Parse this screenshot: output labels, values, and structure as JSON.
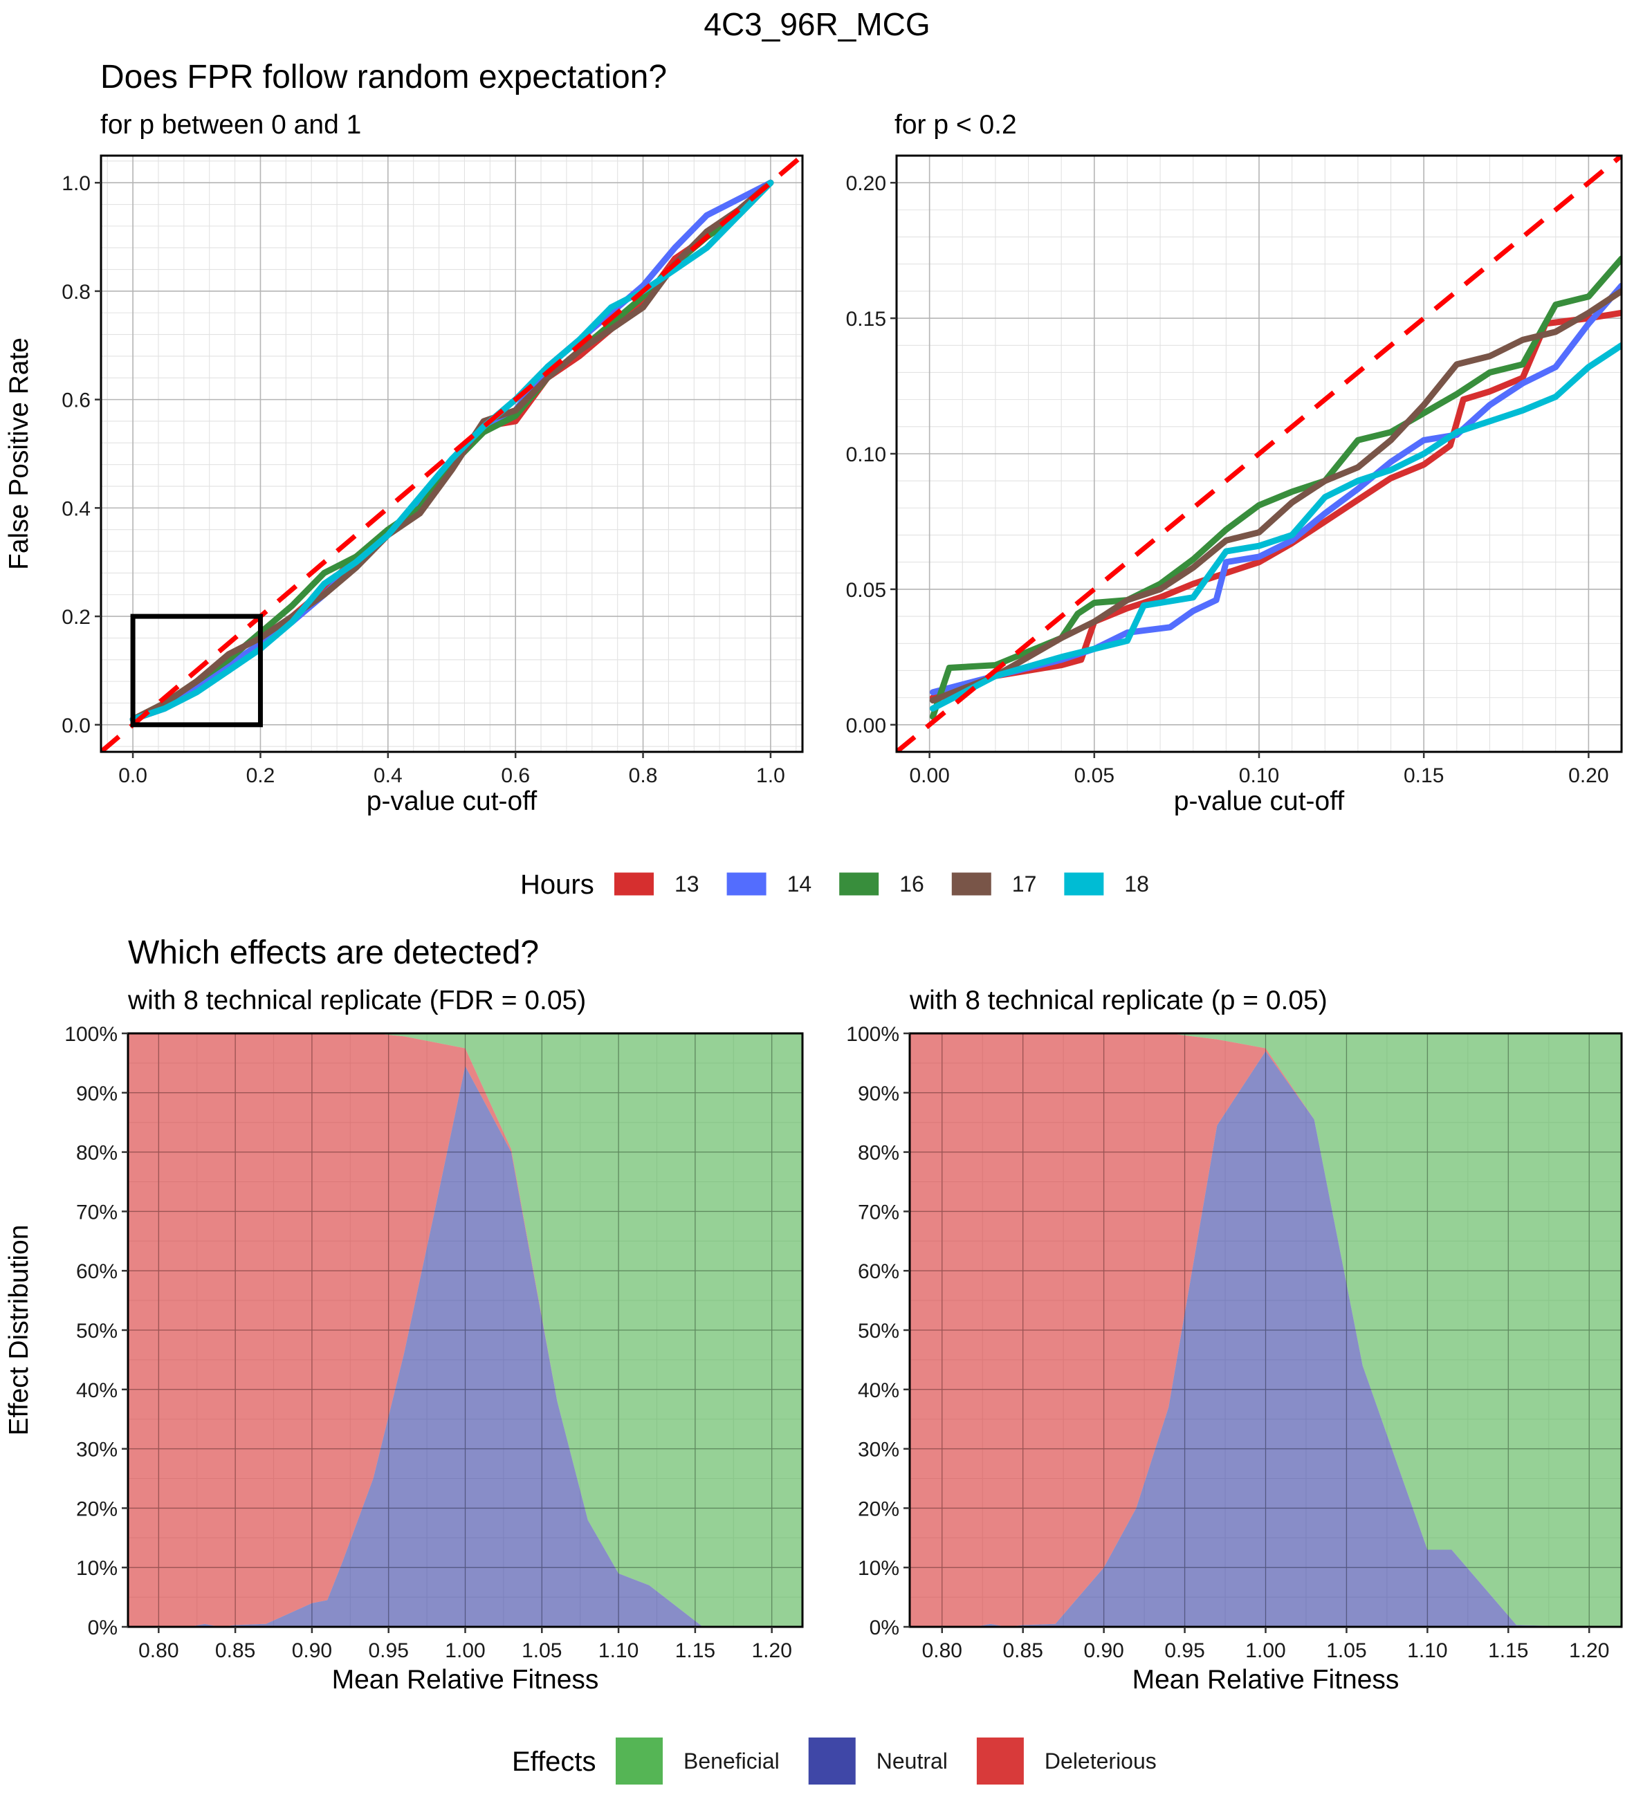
{
  "figure_title": "4C3_96R_MCG",
  "legends": {
    "hours": {
      "title": "Hours",
      "items": [
        {
          "label": "13",
          "color": "#D62F2F"
        },
        {
          "label": "14",
          "color": "#536DFE"
        },
        {
          "label": "16",
          "color": "#388E3C"
        },
        {
          "label": "17",
          "color": "#795548"
        },
        {
          "label": "18",
          "color": "#00BCD4"
        }
      ]
    },
    "effects": {
      "title": "Effects",
      "items": [
        {
          "label": "Beneficial",
          "color": "#55B555"
        },
        {
          "label": "Neutral",
          "color": "#3F47A7"
        },
        {
          "label": "Deleterious",
          "color": "#D83A3A"
        }
      ]
    }
  },
  "chart_data": [
    {
      "type": "line",
      "title": "Does FPR follow random expectation?",
      "subtitle": "for p between 0 and 1",
      "xlabel": "p-value cut-off",
      "ylabel": "False Positive Rate",
      "xlim": [
        -0.05,
        1.05
      ],
      "ylim": [
        -0.05,
        1.05
      ],
      "xticks": [
        "0.0",
        "0.2",
        "0.4",
        "0.6",
        "0.8",
        "1.0"
      ],
      "yticks": [
        "0.0",
        "0.2",
        "0.4",
        "0.6",
        "0.8",
        "1.0"
      ],
      "grid": true,
      "reference_line": {
        "label": "y = x",
        "color": "#FF0000",
        "style": "dashed"
      },
      "highlight_box": {
        "x": [
          0,
          0.2
        ],
        "y": [
          0,
          0.2
        ]
      },
      "series": [
        {
          "name": "13",
          "color": "#D62F2F",
          "x": [
            0,
            0.05,
            0.1,
            0.15,
            0.2,
            0.25,
            0.3,
            0.35,
            0.4,
            0.45,
            0.5,
            0.55,
            0.6,
            0.65,
            0.7,
            0.75,
            0.8,
            0.85,
            0.9,
            0.95,
            1.0
          ],
          "y": [
            0.01,
            0.03,
            0.07,
            0.1,
            0.15,
            0.2,
            0.25,
            0.31,
            0.35,
            0.4,
            0.48,
            0.55,
            0.56,
            0.64,
            0.68,
            0.73,
            0.78,
            0.86,
            0.9,
            0.95,
            1.0
          ]
        },
        {
          "name": "14",
          "color": "#536DFE",
          "x": [
            0,
            0.05,
            0.1,
            0.15,
            0.2,
            0.25,
            0.3,
            0.35,
            0.4,
            0.45,
            0.5,
            0.55,
            0.6,
            0.65,
            0.7,
            0.75,
            0.8,
            0.85,
            0.9,
            0.95,
            1.0
          ],
          "y": [
            0.01,
            0.03,
            0.07,
            0.11,
            0.15,
            0.19,
            0.24,
            0.3,
            0.35,
            0.41,
            0.48,
            0.55,
            0.58,
            0.66,
            0.71,
            0.76,
            0.81,
            0.88,
            0.94,
            0.97,
            1.0
          ]
        },
        {
          "name": "16",
          "color": "#388E3C",
          "x": [
            0,
            0.05,
            0.1,
            0.15,
            0.2,
            0.25,
            0.3,
            0.35,
            0.4,
            0.45,
            0.5,
            0.55,
            0.6,
            0.65,
            0.7,
            0.75,
            0.8,
            0.85,
            0.9,
            0.95,
            1.0
          ],
          "y": [
            0.01,
            0.04,
            0.08,
            0.12,
            0.17,
            0.22,
            0.28,
            0.31,
            0.36,
            0.4,
            0.48,
            0.54,
            0.57,
            0.64,
            0.69,
            0.74,
            0.79,
            0.85,
            0.9,
            0.94,
            1.0
          ]
        },
        {
          "name": "17",
          "color": "#795548",
          "x": [
            0,
            0.05,
            0.1,
            0.15,
            0.2,
            0.25,
            0.3,
            0.35,
            0.4,
            0.45,
            0.5,
            0.55,
            0.6,
            0.65,
            0.7,
            0.75,
            0.8,
            0.85,
            0.9,
            0.95,
            1.0
          ],
          "y": [
            0.01,
            0.04,
            0.08,
            0.13,
            0.16,
            0.2,
            0.24,
            0.29,
            0.35,
            0.39,
            0.47,
            0.56,
            0.58,
            0.64,
            0.69,
            0.73,
            0.77,
            0.85,
            0.91,
            0.95,
            1.0
          ]
        },
        {
          "name": "18",
          "color": "#00BCD4",
          "x": [
            0,
            0.05,
            0.1,
            0.15,
            0.2,
            0.25,
            0.3,
            0.35,
            0.4,
            0.45,
            0.5,
            0.55,
            0.6,
            0.65,
            0.7,
            0.75,
            0.8,
            0.85,
            0.9,
            0.95,
            1.0
          ],
          "y": [
            0.01,
            0.03,
            0.06,
            0.1,
            0.14,
            0.19,
            0.26,
            0.3,
            0.35,
            0.42,
            0.49,
            0.55,
            0.6,
            0.66,
            0.71,
            0.77,
            0.8,
            0.84,
            0.88,
            0.94,
            1.0
          ]
        }
      ]
    },
    {
      "type": "line",
      "title": "",
      "subtitle": "for p < 0.2",
      "xlabel": "p-value cut-off",
      "ylabel": "",
      "xlim": [
        -0.01,
        0.21
      ],
      "ylim": [
        -0.01,
        0.21
      ],
      "xticks": [
        "0.00",
        "0.05",
        "0.10",
        "0.15",
        "0.20"
      ],
      "yticks": [
        "0.00",
        "0.05",
        "0.10",
        "0.15",
        "0.20"
      ],
      "grid": true,
      "reference_line": {
        "label": "y = x",
        "color": "#FF0000",
        "style": "dashed"
      },
      "series": [
        {
          "name": "13",
          "color": "#D62F2F",
          "x": [
            0.001,
            0.02,
            0.04,
            0.046,
            0.05,
            0.06,
            0.07,
            0.08,
            0.09,
            0.1,
            0.11,
            0.12,
            0.13,
            0.14,
            0.15,
            0.158,
            0.162,
            0.17,
            0.18,
            0.187,
            0.2,
            0.21
          ],
          "y": [
            0.01,
            0.018,
            0.022,
            0.024,
            0.038,
            0.043,
            0.047,
            0.052,
            0.056,
            0.06,
            0.067,
            0.075,
            0.083,
            0.091,
            0.096,
            0.103,
            0.12,
            0.123,
            0.128,
            0.148,
            0.15,
            0.152
          ]
        },
        {
          "name": "14",
          "color": "#536DFE",
          "x": [
            0.001,
            0.02,
            0.04,
            0.05,
            0.06,
            0.073,
            0.08,
            0.087,
            0.09,
            0.1,
            0.11,
            0.12,
            0.13,
            0.14,
            0.15,
            0.16,
            0.17,
            0.18,
            0.19,
            0.2,
            0.21
          ],
          "y": [
            0.012,
            0.018,
            0.024,
            0.028,
            0.034,
            0.036,
            0.042,
            0.046,
            0.06,
            0.062,
            0.068,
            0.078,
            0.087,
            0.097,
            0.105,
            0.107,
            0.118,
            0.126,
            0.132,
            0.148,
            0.162
          ]
        },
        {
          "name": "16",
          "color": "#388E3C",
          "x": [
            0.001,
            0.006,
            0.02,
            0.04,
            0.045,
            0.05,
            0.06,
            0.07,
            0.08,
            0.09,
            0.1,
            0.11,
            0.12,
            0.13,
            0.14,
            0.15,
            0.16,
            0.17,
            0.18,
            0.19,
            0.2,
            0.21
          ],
          "y": [
            0.003,
            0.021,
            0.022,
            0.032,
            0.041,
            0.045,
            0.046,
            0.052,
            0.061,
            0.072,
            0.081,
            0.086,
            0.09,
            0.105,
            0.108,
            0.115,
            0.122,
            0.13,
            0.133,
            0.155,
            0.158,
            0.172
          ]
        },
        {
          "name": "17",
          "color": "#795548",
          "x": [
            0.001,
            0.02,
            0.04,
            0.05,
            0.06,
            0.07,
            0.08,
            0.09,
            0.1,
            0.11,
            0.12,
            0.13,
            0.14,
            0.15,
            0.16,
            0.17,
            0.18,
            0.19,
            0.2,
            0.21
          ],
          "y": [
            0.009,
            0.018,
            0.032,
            0.038,
            0.046,
            0.05,
            0.058,
            0.068,
            0.071,
            0.082,
            0.09,
            0.095,
            0.105,
            0.118,
            0.133,
            0.136,
            0.142,
            0.145,
            0.152,
            0.16
          ]
        },
        {
          "name": "18",
          "color": "#00BCD4",
          "x": [
            0.001,
            0.02,
            0.04,
            0.05,
            0.06,
            0.065,
            0.08,
            0.09,
            0.1,
            0.11,
            0.12,
            0.13,
            0.14,
            0.15,
            0.16,
            0.17,
            0.18,
            0.19,
            0.2,
            0.21
          ],
          "y": [
            0.006,
            0.018,
            0.025,
            0.028,
            0.031,
            0.044,
            0.047,
            0.064,
            0.066,
            0.07,
            0.084,
            0.09,
            0.094,
            0.1,
            0.108,
            0.112,
            0.116,
            0.121,
            0.132,
            0.14
          ]
        }
      ]
    },
    {
      "type": "area",
      "stacked": true,
      "title": "Which effects are detected?",
      "subtitle": "with 8 technical replicate (FDR = 0.05)",
      "xlabel": "Mean Relative Fitness",
      "ylabel": "Effect Distribution",
      "xlim": [
        0.78,
        1.22
      ],
      "ylim": [
        0,
        100
      ],
      "xticks": [
        "0.80",
        "0.85",
        "0.90",
        "0.95",
        "1.00",
        "1.05",
        "1.10",
        "1.15",
        "1.20"
      ],
      "yticks": [
        "0%",
        "10%",
        "20%",
        "30%",
        "40%",
        "50%",
        "60%",
        "70%",
        "80%",
        "90%",
        "100%"
      ],
      "grid": true,
      "x": [
        0.78,
        0.8,
        0.82,
        0.83,
        0.84,
        0.85,
        0.87,
        0.9,
        0.91,
        0.92,
        0.94,
        0.96,
        0.98,
        1.0,
        1.03,
        1.06,
        1.08,
        1.1,
        1.12,
        1.155,
        1.2,
        1.22
      ],
      "series": [
        {
          "name": "Neutral",
          "color": "#3F47A7",
          "values": [
            0,
            0,
            0,
            0.5,
            0,
            0.3,
            0.5,
            4,
            4.5,
            11,
            25,
            46,
            70,
            94.5,
            80,
            38,
            18,
            9,
            7,
            0,
            0,
            0
          ]
        },
        {
          "name": "Deleterious",
          "color": "#D83A3A",
          "values": [
            100,
            100,
            100,
            99.5,
            100,
            99.7,
            99.5,
            96,
            95.5,
            89,
            75,
            53.5,
            28.5,
            3,
            0.5,
            0,
            0,
            0,
            0,
            0,
            0,
            0
          ]
        },
        {
          "name": "Beneficial",
          "color": "#55B555",
          "values": [
            0,
            0,
            0,
            0,
            0,
            0,
            0,
            0,
            0,
            0,
            0,
            0.5,
            1.5,
            2.5,
            19.5,
            62,
            82,
            91,
            93,
            100,
            100,
            100
          ]
        }
      ]
    },
    {
      "type": "area",
      "stacked": true,
      "title": "",
      "subtitle": "with 8 technical replicate (p = 0.05)",
      "xlabel": "Mean Relative Fitness",
      "ylabel": "",
      "xlim": [
        0.78,
        1.22
      ],
      "ylim": [
        0,
        100
      ],
      "xticks": [
        "0.80",
        "0.85",
        "0.90",
        "0.95",
        "1.00",
        "1.05",
        "1.10",
        "1.15",
        "1.20"
      ],
      "yticks": [
        "0%",
        "10%",
        "20%",
        "30%",
        "40%",
        "50%",
        "60%",
        "70%",
        "80%",
        "90%",
        "100%"
      ],
      "grid": true,
      "x": [
        0.78,
        0.8,
        0.82,
        0.83,
        0.84,
        0.85,
        0.87,
        0.9,
        0.92,
        0.94,
        0.97,
        1.0,
        1.03,
        1.06,
        1.1,
        1.115,
        1.155,
        1.2,
        1.22
      ],
      "series": [
        {
          "name": "Neutral",
          "color": "#3F47A7",
          "values": [
            0,
            0,
            0,
            0.5,
            0,
            0.3,
            0.5,
            10,
            20,
            37,
            84.5,
            97,
            85.5,
            44,
            13,
            13,
            0.3,
            0,
            0
          ]
        },
        {
          "name": "Deleterious",
          "color": "#D83A3A",
          "values": [
            100,
            100,
            100,
            99.5,
            100,
            99.7,
            99.5,
            90,
            80,
            63,
            14.5,
            0.5,
            0,
            0,
            0,
            0,
            0,
            0,
            0
          ]
        },
        {
          "name": "Beneficial",
          "color": "#55B555",
          "values": [
            0,
            0,
            0,
            0,
            0,
            0,
            0,
            0,
            0,
            0,
            1,
            2.5,
            14.5,
            56,
            87,
            87,
            99.7,
            100,
            100
          ]
        }
      ]
    }
  ]
}
